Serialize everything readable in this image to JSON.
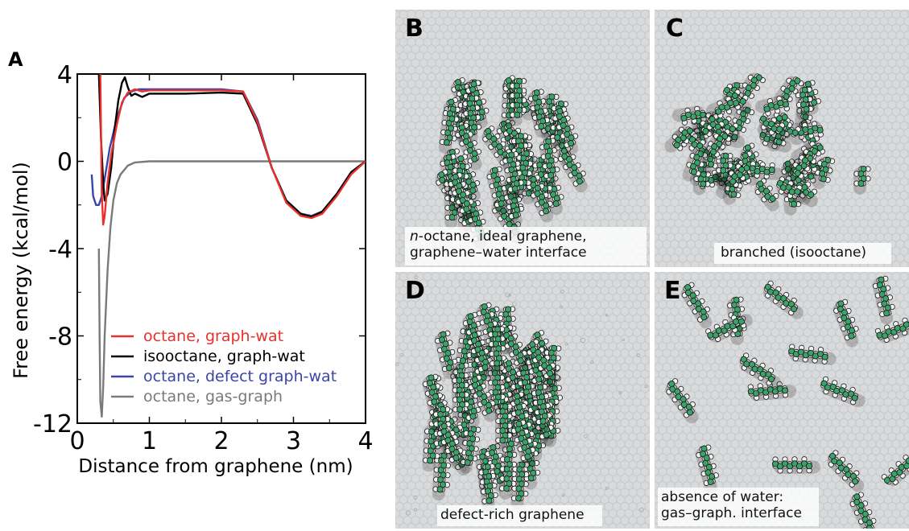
{
  "chart_data": {
    "type": "line",
    "panel_label": "A",
    "xlabel": "Distance from graphene (nm)",
    "ylabel": "Free energy (kcal/mol)",
    "xlim": [
      0,
      4
    ],
    "ylim": [
      -12,
      4
    ],
    "xticks": [
      0,
      1,
      2,
      3,
      4
    ],
    "yticks": [
      4,
      0,
      -4,
      -8,
      -12
    ],
    "xtick_labels": [
      "0",
      "1",
      "2",
      "3",
      "4"
    ],
    "ytick_labels": [
      "4",
      "0",
      "-4",
      "-8",
      "-12"
    ],
    "legend_position": "lower-right",
    "series": [
      {
        "name": "octane, graph-wat",
        "color": "#e8302c",
        "x": [
          0.32,
          0.34,
          0.36,
          0.38,
          0.42,
          0.47,
          0.55,
          0.62,
          0.7,
          0.8,
          0.9,
          1.0,
          1.5,
          2.0,
          2.3,
          2.5,
          2.7,
          2.9,
          3.1,
          3.25,
          3.4,
          3.6,
          3.8,
          4.0
        ],
        "y": [
          4.0,
          -1.5,
          -2.9,
          -2.5,
          -1.0,
          0.3,
          1.7,
          2.7,
          3.15,
          3.3,
          3.2,
          3.25,
          3.25,
          3.25,
          3.2,
          1.8,
          -0.3,
          -1.9,
          -2.5,
          -2.6,
          -2.4,
          -1.6,
          -0.6,
          0.0
        ]
      },
      {
        "name": "isooctane, graph-wat",
        "color": "#000000",
        "x": [
          0.3,
          0.33,
          0.36,
          0.38,
          0.42,
          0.47,
          0.52,
          0.57,
          0.62,
          0.66,
          0.7,
          0.75,
          0.8,
          0.9,
          1.0,
          1.5,
          2.0,
          2.3,
          2.5,
          2.7,
          2.9,
          3.1,
          3.25,
          3.4,
          3.6,
          3.8,
          4.0
        ],
        "y": [
          4.0,
          1.0,
          -1.0,
          -1.8,
          -1.5,
          -0.3,
          1.5,
          2.8,
          3.6,
          3.85,
          3.4,
          3.0,
          3.1,
          2.95,
          3.1,
          3.1,
          3.15,
          3.1,
          1.7,
          -0.3,
          -1.8,
          -2.4,
          -2.55,
          -2.3,
          -1.5,
          -0.5,
          0.0
        ]
      },
      {
        "name": "octane, defect graph-wat",
        "color": "#3a45a8",
        "x": [
          0.2,
          0.22,
          0.26,
          0.3,
          0.34,
          0.38,
          0.45,
          0.55,
          0.65,
          0.75,
          0.85,
          1.0,
          1.5,
          2.0,
          2.3,
          2.5,
          2.7,
          2.9,
          3.1,
          3.25,
          3.4,
          3.6,
          3.8,
          4.0
        ],
        "y": [
          -0.6,
          -1.6,
          -2.0,
          -2.0,
          -1.6,
          -0.8,
          0.6,
          2.0,
          2.9,
          3.2,
          3.3,
          3.3,
          3.3,
          3.3,
          3.2,
          1.9,
          -0.3,
          -1.8,
          -2.4,
          -2.5,
          -2.3,
          -1.5,
          -0.5,
          0.0
        ]
      },
      {
        "name": "octane, gas-graph",
        "color": "#7a7a7a",
        "x": [
          0.3,
          0.31,
          0.32,
          0.34,
          0.36,
          0.38,
          0.42,
          0.46,
          0.5,
          0.55,
          0.6,
          0.7,
          0.8,
          1.0,
          1.5,
          2.0,
          3.0,
          4.0
        ],
        "y": [
          -4.0,
          -8.0,
          -11.0,
          -11.7,
          -10.3,
          -8.0,
          -5.0,
          -3.0,
          -1.8,
          -1.0,
          -0.6,
          -0.2,
          -0.05,
          0.0,
          0.0,
          0.0,
          0.0,
          0.0
        ]
      }
    ]
  },
  "panels": [
    {
      "letter": "B",
      "caption_lines": [
        "n-octane, ideal graphene,",
        "graphene–water interface"
      ],
      "caption_italic_prefix": "n",
      "caption_rest": "-octane, ideal graphene,"
    },
    {
      "letter": "C",
      "caption_lines": [
        "branched (isooctane)"
      ]
    },
    {
      "letter": "D",
      "caption_lines": [
        "defect-rich graphene"
      ]
    },
    {
      "letter": "E",
      "caption_lines": [
        "absence of water:",
        "gas–graph. interface"
      ]
    }
  ],
  "colors": {
    "carbon": "#3aa36a",
    "hydrogen": "#f2f2f2",
    "outline": "#1a1a1a",
    "graphene_bg": "#d9dadb"
  }
}
